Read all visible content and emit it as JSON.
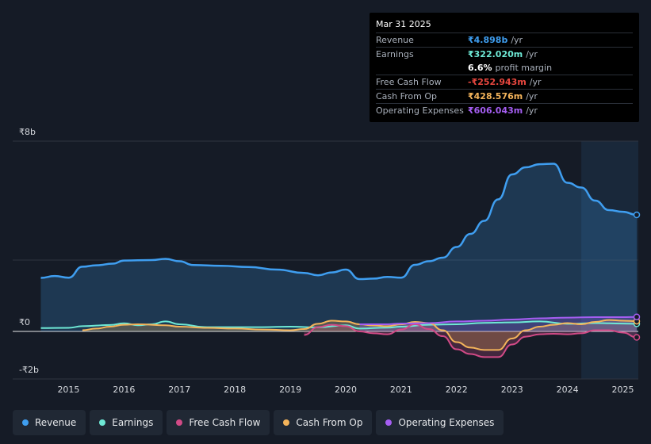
{
  "tooltip": {
    "date": "Mar 31 2025",
    "rows": [
      {
        "label": "Revenue",
        "value": "₹4.898b",
        "unit": "/yr",
        "color": "#3f9ef0"
      },
      {
        "label": "Earnings",
        "value": "₹322.020m",
        "unit": "/yr",
        "color": "#6ee8d5"
      },
      {
        "label": "",
        "value": "6.6%",
        "unit": "profit margin",
        "color": "#ffffff"
      },
      {
        "label": "Free Cash Flow",
        "value": "-₹252.943m",
        "unit": "/yr",
        "color": "#e8473f"
      },
      {
        "label": "Cash From Op",
        "value": "₹428.576m",
        "unit": "/yr",
        "color": "#f3b35a"
      },
      {
        "label": "Operating Expenses",
        "value": "₹606.043m",
        "unit": "/yr",
        "color": "#a55ef2"
      }
    ]
  },
  "chart_data": {
    "type": "area",
    "title": "",
    "xlabel": "",
    "ylabel": "",
    "ylim": [
      -2,
      8
    ],
    "y_ticks": [
      {
        "value": 8,
        "label": "₹8b"
      },
      {
        "value": 0,
        "label": "₹0"
      },
      {
        "value": -2,
        "label": "-₹2b"
      }
    ],
    "x_ticks": [
      {
        "value": 2015,
        "label": "2015"
      },
      {
        "value": 2016,
        "label": "2016"
      },
      {
        "value": 2017,
        "label": "2017"
      },
      {
        "value": 2018,
        "label": "2018"
      },
      {
        "value": 2019,
        "label": "2019"
      },
      {
        "value": 2020,
        "label": "2020"
      },
      {
        "value": 2021,
        "label": "2021"
      },
      {
        "value": 2022,
        "label": "2022"
      },
      {
        "value": 2023,
        "label": "2023"
      },
      {
        "value": 2024,
        "label": "2024"
      },
      {
        "value": 2025,
        "label": "2025"
      }
    ],
    "xlim": [
      2014.45,
      2025.25
    ],
    "highlight_start": 2024.25,
    "series": [
      {
        "name": "Revenue",
        "color": "#3f9ef0",
        "fill": true,
        "points": [
          [
            2014.5,
            2.25
          ],
          [
            2014.75,
            2.33
          ],
          [
            2015.0,
            2.26
          ],
          [
            2015.25,
            2.72
          ],
          [
            2015.5,
            2.78
          ],
          [
            2015.8,
            2.85
          ],
          [
            2016.0,
            2.98
          ],
          [
            2016.5,
            3.0
          ],
          [
            2016.75,
            3.05
          ],
          [
            2017.0,
            2.95
          ],
          [
            2017.25,
            2.79
          ],
          [
            2017.75,
            2.76
          ],
          [
            2018.25,
            2.71
          ],
          [
            2018.75,
            2.6
          ],
          [
            2019.25,
            2.46
          ],
          [
            2019.5,
            2.36
          ],
          [
            2019.75,
            2.48
          ],
          [
            2020.0,
            2.6
          ],
          [
            2020.25,
            2.2
          ],
          [
            2020.5,
            2.22
          ],
          [
            2020.75,
            2.29
          ],
          [
            2021.0,
            2.26
          ],
          [
            2021.25,
            2.8
          ],
          [
            2021.5,
            2.95
          ],
          [
            2021.75,
            3.1
          ],
          [
            2022.0,
            3.55
          ],
          [
            2022.25,
            4.1
          ],
          [
            2022.5,
            4.65
          ],
          [
            2022.75,
            5.55
          ],
          [
            2023.0,
            6.6
          ],
          [
            2023.25,
            6.9
          ],
          [
            2023.5,
            7.03
          ],
          [
            2023.75,
            7.05
          ],
          [
            2024.0,
            6.25
          ],
          [
            2024.25,
            6.05
          ],
          [
            2024.5,
            5.5
          ],
          [
            2024.75,
            5.1
          ],
          [
            2025.0,
            5.03
          ],
          [
            2025.25,
            4.9
          ]
        ]
      },
      {
        "name": "Earnings",
        "color": "#6ee8d5",
        "fill": false,
        "points": [
          [
            2014.5,
            0.14
          ],
          [
            2015.0,
            0.15
          ],
          [
            2015.25,
            0.22
          ],
          [
            2015.75,
            0.27
          ],
          [
            2016.0,
            0.34
          ],
          [
            2016.25,
            0.26
          ],
          [
            2016.5,
            0.3
          ],
          [
            2016.75,
            0.42
          ],
          [
            2017.0,
            0.3
          ],
          [
            2017.5,
            0.18
          ],
          [
            2018.5,
            0.18
          ],
          [
            2019.0,
            0.2
          ],
          [
            2019.5,
            0.17
          ],
          [
            2020.0,
            0.26
          ],
          [
            2020.25,
            0.12
          ],
          [
            2020.75,
            0.16
          ],
          [
            2021.0,
            0.2
          ],
          [
            2021.5,
            0.28
          ],
          [
            2022.0,
            0.3
          ],
          [
            2022.5,
            0.36
          ],
          [
            2023.0,
            0.38
          ],
          [
            2023.5,
            0.42
          ],
          [
            2024.0,
            0.32
          ],
          [
            2024.5,
            0.35
          ],
          [
            2025.0,
            0.33
          ],
          [
            2025.25,
            0.32
          ]
        ]
      },
      {
        "name": "Free Cash Flow",
        "color": "#d14a86",
        "fill": true,
        "points": [
          [
            2019.25,
            -0.15
          ],
          [
            2019.5,
            0.18
          ],
          [
            2019.75,
            0.28
          ],
          [
            2020.0,
            0.22
          ],
          [
            2020.25,
            0.0
          ],
          [
            2020.5,
            -0.08
          ],
          [
            2020.75,
            -0.12
          ],
          [
            2021.0,
            0.08
          ],
          [
            2021.25,
            0.3
          ],
          [
            2021.5,
            0.1
          ],
          [
            2021.75,
            -0.2
          ],
          [
            2022.0,
            -0.75
          ],
          [
            2022.25,
            -0.95
          ],
          [
            2022.5,
            -1.08
          ],
          [
            2022.75,
            -1.08
          ],
          [
            2023.0,
            -0.55
          ],
          [
            2023.25,
            -0.22
          ],
          [
            2023.5,
            -0.12
          ],
          [
            2023.75,
            -0.1
          ],
          [
            2024.0,
            -0.12
          ],
          [
            2024.25,
            -0.08
          ],
          [
            2024.5,
            0.05
          ],
          [
            2024.75,
            0.05
          ],
          [
            2025.0,
            -0.05
          ],
          [
            2025.25,
            -0.25
          ]
        ]
      },
      {
        "name": "Cash From Op",
        "color": "#f3b35a",
        "fill": true,
        "points": [
          [
            2015.25,
            0.05
          ],
          [
            2015.5,
            0.12
          ],
          [
            2015.75,
            0.2
          ],
          [
            2016.0,
            0.28
          ],
          [
            2016.25,
            0.3
          ],
          [
            2016.75,
            0.26
          ],
          [
            2017.0,
            0.2
          ],
          [
            2017.5,
            0.15
          ],
          [
            2018.0,
            0.12
          ],
          [
            2018.5,
            0.08
          ],
          [
            2019.0,
            0.05
          ],
          [
            2019.25,
            0.1
          ],
          [
            2019.5,
            0.32
          ],
          [
            2019.75,
            0.45
          ],
          [
            2020.0,
            0.42
          ],
          [
            2020.25,
            0.3
          ],
          [
            2020.5,
            0.25
          ],
          [
            2020.75,
            0.22
          ],
          [
            2021.0,
            0.3
          ],
          [
            2021.25,
            0.4
          ],
          [
            2021.5,
            0.35
          ],
          [
            2021.75,
            0.05
          ],
          [
            2022.0,
            -0.45
          ],
          [
            2022.25,
            -0.68
          ],
          [
            2022.5,
            -0.78
          ],
          [
            2022.75,
            -0.78
          ],
          [
            2023.0,
            -0.3
          ],
          [
            2023.25,
            0.05
          ],
          [
            2023.5,
            0.2
          ],
          [
            2023.75,
            0.28
          ],
          [
            2024.0,
            0.35
          ],
          [
            2024.25,
            0.3
          ],
          [
            2024.5,
            0.4
          ],
          [
            2024.75,
            0.48
          ],
          [
            2025.0,
            0.45
          ],
          [
            2025.25,
            0.43
          ]
        ]
      },
      {
        "name": "Operating Expenses",
        "color": "#a55ef2",
        "fill": true,
        "points": [
          [
            2020.25,
            0.3
          ],
          [
            2020.75,
            0.3
          ],
          [
            2021.0,
            0.33
          ],
          [
            2021.5,
            0.35
          ],
          [
            2022.0,
            0.42
          ],
          [
            2022.5,
            0.45
          ],
          [
            2023.0,
            0.5
          ],
          [
            2023.5,
            0.55
          ],
          [
            2024.0,
            0.58
          ],
          [
            2024.5,
            0.6
          ],
          [
            2025.0,
            0.6
          ],
          [
            2025.25,
            0.61
          ]
        ]
      }
    ]
  },
  "legend": [
    {
      "label": "Revenue",
      "color": "#3f9ef0"
    },
    {
      "label": "Earnings",
      "color": "#6ee8d5"
    },
    {
      "label": "Free Cash Flow",
      "color": "#d14a86"
    },
    {
      "label": "Cash From Op",
      "color": "#f3b35a"
    },
    {
      "label": "Operating Expenses",
      "color": "#a55ef2"
    }
  ]
}
